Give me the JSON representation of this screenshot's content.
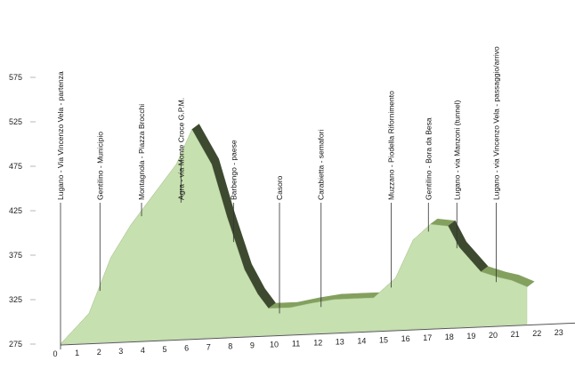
{
  "chart_data": {
    "type": "area",
    "title": "",
    "xlabel": "",
    "ylabel": "",
    "x_ticks": [
      0,
      1,
      2,
      3,
      4,
      5,
      6,
      7,
      8,
      9,
      10,
      11,
      12,
      13,
      14,
      15,
      16,
      17,
      18,
      19,
      20,
      21,
      22,
      23
    ],
    "y_ticks": [
      275,
      325,
      375,
      425,
      475,
      525,
      575
    ],
    "xlim": [
      0,
      23
    ],
    "ylim": [
      275,
      575
    ],
    "grid": false,
    "legend": "none",
    "series": [
      {
        "x": [
          0,
          1.3,
          2.3,
          3.2,
          4.2,
          5.3,
          6.0,
          6.9,
          7.6,
          8.4,
          9.0,
          9.5,
          10.5,
          11.5,
          12.5,
          13.5,
          14.3,
          15.3,
          16.1,
          16.9,
          17.7,
          18.2,
          19.2,
          20.0,
          20.6,
          21.3
        ],
        "y": [
          275,
          308,
          370,
          405,
          437,
          472,
          510,
          470,
          410,
          350,
          322,
          305,
          305,
          309,
          312,
          312,
          312,
          333,
          375,
          392,
          389,
          365,
          336,
          329,
          325,
          317
        ],
        "colors": {
          "top": "#84a05e",
          "face": "#c6e0b0",
          "shadow": "#3e4a30"
        }
      }
    ],
    "waypoints": [
      {
        "label": "Lugano - Via Vincenzo Vela - partenza",
        "km": 0
      },
      {
        "label": "Gentilino - Municipio",
        "km": 1.8
      },
      {
        "label": "Montagnola - Piazza Brocchi",
        "km": 3.7
      },
      {
        "label": "Agra - via Monte Croce  G.P.M.",
        "km": 5.5
      },
      {
        "label": "Barbengo - paese",
        "km": 7.9
      },
      {
        "label": "Casoro",
        "km": 10.0
      },
      {
        "label": "Carabietta - semafori",
        "km": 11.9
      },
      {
        "label": "Muzzano - Piodella  Rifornimento",
        "km": 15.1
      },
      {
        "label": "Gentilino - Bora da Besa",
        "km": 16.8
      },
      {
        "label": "Lugano - via Manzoni (tunnel)",
        "km": 18.1
      },
      {
        "label": "Lugano - via Vincenzo Vela - passaggio/arrivo",
        "km": 19.9
      }
    ]
  }
}
